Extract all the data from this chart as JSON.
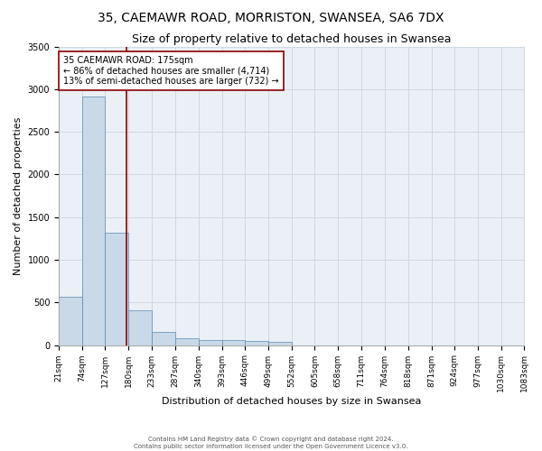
{
  "title": "35, CAEMAWR ROAD, MORRISTON, SWANSEA, SA6 7DX",
  "subtitle": "Size of property relative to detached houses in Swansea",
  "xlabel": "Distribution of detached houses by size in Swansea",
  "ylabel": "Number of detached properties",
  "footer_line1": "Contains HM Land Registry data © Crown copyright and database right 2024.",
  "footer_line2": "Contains public sector information licensed under the Open Government Licence v3.0.",
  "bar_edges": [
    21,
    74,
    127,
    180,
    233,
    287,
    340,
    393,
    446,
    499,
    552,
    605,
    658,
    711,
    764,
    818,
    871,
    924,
    977,
    1030,
    1083
  ],
  "bar_heights": [
    570,
    2910,
    1320,
    410,
    155,
    80,
    60,
    55,
    45,
    40,
    0,
    0,
    0,
    0,
    0,
    0,
    0,
    0,
    0,
    0
  ],
  "bar_color": "#c9d9e8",
  "bar_edgecolor": "#5a8ab0",
  "property_line_x": 175,
  "property_line_color": "#8b0000",
  "annotation_text": "35 CAEMAWR ROAD: 175sqm\n← 86% of detached houses are smaller (4,714)\n13% of semi-detached houses are larger (732) →",
  "annotation_box_color": "white",
  "annotation_box_edgecolor": "#8b0000",
  "ylim": [
    0,
    3500
  ],
  "yticks": [
    0,
    500,
    1000,
    1500,
    2000,
    2500,
    3000,
    3500
  ],
  "grid_color": "#d0d8e0",
  "bg_color": "#eaf0f6",
  "title_fontsize": 10,
  "subtitle_fontsize": 9,
  "tick_label_fontsize": 6.5,
  "ylabel_fontsize": 8,
  "xlabel_fontsize": 8,
  "annotation_fontsize": 7,
  "footer_fontsize": 5
}
